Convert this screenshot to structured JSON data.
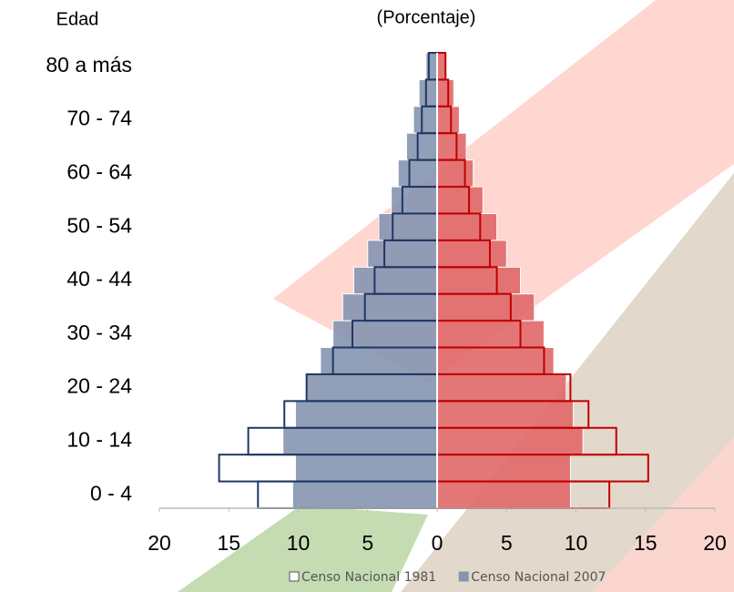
{
  "chart_data": {
    "type": "pyramid",
    "subtitle": "(Porcentaje)",
    "y_label": "Edad",
    "categories": [
      "0 - 4",
      null,
      "10 - 14",
      null,
      "20 - 24",
      null,
      "30 - 34",
      null,
      "40 - 44",
      null,
      "50 - 54",
      null,
      "60 - 64",
      null,
      "70 - 74",
      null,
      "80 a más"
    ],
    "series": [
      {
        "name": "Censo Nacional 2007",
        "style": "fill",
        "color": "#8595b0",
        "color_right": "#e06868",
        "values": [
          10.4,
          10.2,
          11.1,
          10.2,
          9.4,
          8.4,
          7.5,
          6.8,
          6.0,
          5.0,
          4.2,
          3.3,
          2.8,
          2.2,
          1.7,
          1.3,
          0.8
        ],
        "values_right": [
          9.6,
          9.6,
          10.5,
          9.8,
          9.3,
          8.4,
          7.7,
          7.0,
          6.0,
          5.0,
          4.3,
          3.3,
          2.6,
          2.1,
          1.6,
          1.2,
          0.7
        ]
      },
      {
        "name": "Censo Nacional 1981",
        "style": "outline",
        "color": "#1f3864",
        "color_right": "#c00000",
        "values": [
          12.9,
          15.7,
          13.6,
          11.0,
          9.4,
          7.5,
          6.1,
          5.2,
          4.5,
          3.8,
          3.2,
          2.5,
          2.0,
          1.4,
          1.1,
          0.8,
          0.6
        ],
        "values_right": [
          12.4,
          15.2,
          12.9,
          10.9,
          9.6,
          7.7,
          6.0,
          5.3,
          4.3,
          3.8,
          3.1,
          2.3,
          2.0,
          1.4,
          1.0,
          0.8,
          0.6
        ]
      }
    ],
    "xlim": [
      -20,
      20
    ],
    "xticks": [
      {
        "value": -20,
        "label": "20"
      },
      {
        "value": -15,
        "label": "15"
      },
      {
        "value": -10,
        "label": "10"
      },
      {
        "value": -5,
        "label": "5"
      },
      0,
      5,
      10,
      15,
      20
    ]
  }
}
